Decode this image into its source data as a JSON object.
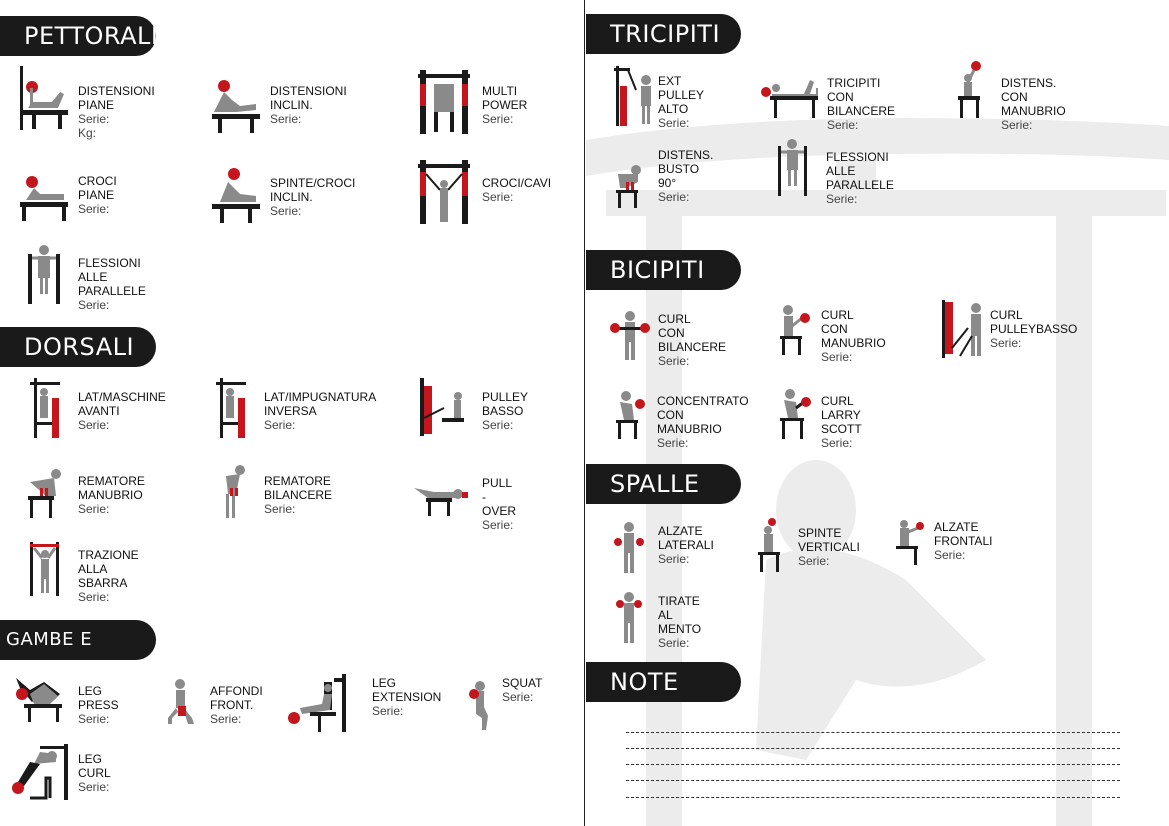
{
  "sections": {
    "pettorali": "PETTORALI",
    "dorsali": "DORSALI",
    "gambe": "GAMBE E GLUTEI",
    "tricipiti": "TRICIPITI",
    "bicipiti": "BICIPITI",
    "spalle": "SPALLE",
    "note": "NOTE"
  },
  "labels": {
    "serie": "Serie:",
    "kg": "Kg:"
  },
  "exercises": {
    "p1": "DISTENSIONI PIANE",
    "p2": "DISTENSIONI INCLIN.",
    "p3": "MULTI POWER",
    "p4": "CROCI PIANE",
    "p5": "SPINTE/CROCI INCLIN.",
    "p6": "CROCI/CAVI",
    "p7": "FLESSIONI ALLE PARALLELE",
    "d1": "LAT/MASCHINE\nAVANTI",
    "d2": "LAT/IMPUGNATURA\nINVERSA",
    "d3": "PULLEY BASSO",
    "d4": "REMATORE\nMANUBRIO",
    "d5": "REMATORE\nBILANCERE",
    "d6": "PULL - OVER",
    "d7": "TRAZIONE\nALLA SBARRA",
    "g1": "LEG PRESS",
    "g2": "AFFONDI\nFRONT.",
    "g3": "LEG\nEXTENSION",
    "g4": "SQUAT",
    "g5": "LEG\nCURL",
    "t1": "EXT PULLEY ALTO",
    "t2": "TRICIPITI\nCON BILANCERE",
    "t3": "DISTENS.\nCON MANUBRIO",
    "t4": "DISTENS.\nBUSTO 90°",
    "t5": "FLESSIONI\nALLE PARALLELE",
    "b1": "CURL\nCON BILANCERE",
    "b2": "CURL\nCON MANUBRIO",
    "b3": "CURL\nPULLEYBASSO",
    "b4": "CONCENTRATO\nCON MANUBRIO",
    "b5": "CURL\nLARRY SCOTT",
    "s1": "ALZATE\nLATERALI",
    "s2": "SPINTE\nVERTICALI",
    "s3": "ALZATE\nFRONTALI",
    "s4": "TIRATE\nAL MENTO"
  },
  "colors": {
    "accent": "#c4161c",
    "figure": "#8a8a8a",
    "equipment": "#1a1a1a",
    "pill": "#1a1a1a"
  },
  "icons": [
    "exercise-figure-icon",
    "watermark-torii-figure"
  ]
}
